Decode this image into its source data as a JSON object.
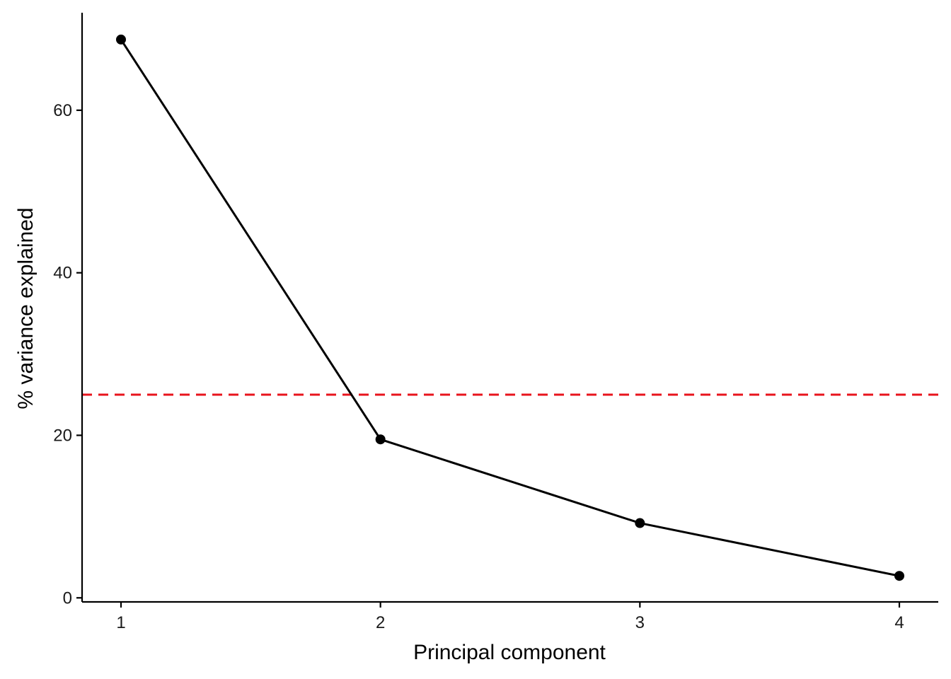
{
  "chart_data": {
    "type": "line",
    "title": "",
    "xlabel": "Principal component",
    "ylabel": "% variance explained",
    "x": [
      1,
      2,
      3,
      4
    ],
    "x_tick_labels": [
      "1",
      "2",
      "3",
      "4"
    ],
    "y_ticks": [
      0,
      20,
      40,
      60
    ],
    "y_tick_labels": [
      "0",
      "20",
      "40",
      "60"
    ],
    "xlim": [
      0.85,
      4.15
    ],
    "ylim": [
      -0.5,
      72
    ],
    "series": [
      {
        "values": [
          68.7,
          19.5,
          9.2,
          2.7
        ],
        "color": "#000000",
        "markers": true
      }
    ],
    "reference_line": {
      "orientation": "horizontal",
      "y": 25,
      "style": "dashed",
      "color": "#e8141c"
    },
    "grid": false,
    "legend": "none"
  }
}
